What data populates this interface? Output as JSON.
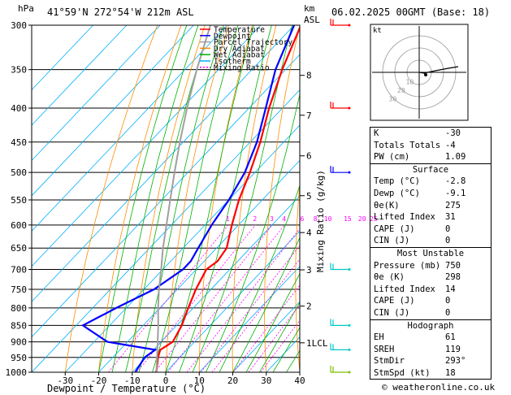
{
  "header": {
    "location": "41°59'N  272°54'W  212m  ASL",
    "datetime": "06.02.2025  00GMT  (Base: 18)",
    "y_unit_left": "hPa",
    "y_unit_right_1": "km",
    "y_unit_right_2": "ASL"
  },
  "chart_data": {
    "type": "line",
    "title": "41°59'N  272°54'W  212m  ASL",
    "xlabel": "Dewpoint / Temperature (°C)",
    "ylabel": "hPa",
    "right_axis_label": "Mixing Ratio (g/kg)",
    "xlim": [
      -40,
      40
    ],
    "ylim": [
      1000,
      300
    ],
    "x_ticks": [
      "-30",
      "-20",
      "-10",
      "0",
      "10",
      "20",
      "30",
      "40"
    ],
    "pressure_ticks": [
      "300",
      "350",
      "400",
      "450",
      "500",
      "550",
      "600",
      "650",
      "700",
      "750",
      "800",
      "850",
      "900",
      "950",
      "1000"
    ],
    "km_ticks": [
      {
        "label": "8",
        "p": 357
      },
      {
        "label": "7",
        "p": 410
      },
      {
        "label": "6",
        "p": 472
      },
      {
        "label": "5",
        "p": 542
      },
      {
        "label": "4",
        "p": 616
      },
      {
        "label": "3",
        "p": 701
      },
      {
        "label": "2",
        "p": 795
      },
      {
        "label": "1LCL",
        "p": 903
      }
    ],
    "mixing_ratio_labels": [
      "1",
      "2",
      "3",
      "4",
      "6",
      "8",
      "10",
      "15",
      "20",
      "25"
    ],
    "legend": [
      {
        "name": "Temperature",
        "color": "#ff0000"
      },
      {
        "name": "Dewpoint",
        "color": "#0000ff"
      },
      {
        "name": "Parcel Trajectory",
        "color": "#a0a0a0"
      },
      {
        "name": "Dry Adiabat",
        "color": "#ff8c00"
      },
      {
        "name": "Wet Adiabat",
        "color": "#00b000"
      },
      {
        "name": "Isotherm",
        "color": "#00b0ff"
      },
      {
        "name": "Mixing Ratio",
        "color": "#ff00ff"
      }
    ],
    "series": [
      {
        "name": "Temperature",
        "color": "#ff0000",
        "p": [
          1000,
          950,
          925,
          900,
          850,
          800,
          750,
          700,
          680,
          650,
          600,
          550,
          500,
          450,
          400,
          350,
          300
        ],
        "t": [
          -2.8,
          -6.5,
          -8.0,
          -6.5,
          -8.5,
          -11.5,
          -14.5,
          -17.0,
          -16.0,
          -17.0,
          -22.0,
          -27.0,
          -31.5,
          -37.0,
          -44.0,
          -51.0,
          -58.0
        ]
      },
      {
        "name": "Dewpoint",
        "color": "#0000ff",
        "p": [
          1000,
          950,
          925,
          900,
          850,
          800,
          750,
          700,
          680,
          650,
          600,
          550,
          500,
          450,
          400,
          350,
          300
        ],
        "t": [
          -9.1,
          -10.5,
          -9.5,
          -26.0,
          -38.0,
          -33.0,
          -27.0,
          -24.0,
          -24.0,
          -25.5,
          -28.0,
          -30.0,
          -33.0,
          -38.0,
          -45.0,
          -53.0,
          -60.0
        ]
      },
      {
        "name": "Parcel Trajectory",
        "color": "#a0a0a0",
        "p": [
          1000,
          900,
          850,
          800,
          750,
          700,
          650,
          600,
          550,
          500,
          450,
          400,
          350,
          300
        ],
        "t": [
          -2.8,
          -11.0,
          -15.5,
          -20.5,
          -25.5,
          -30.5,
          -36.0,
          -41.5,
          -47.5,
          -54.0,
          -61.0,
          -68.5,
          -76.5,
          -85.0
        ]
      }
    ],
    "wind_barb_colors": [
      "#ff0000",
      "#ff0000",
      "#0000ff",
      "#00c8c8",
      "#00c8c8",
      "#00c8c8",
      "#7fbf00"
    ]
  },
  "hodograph": {
    "label": "kt",
    "ring_labels": [
      "10",
      "20",
      "30"
    ]
  },
  "indices": {
    "rows": [
      {
        "k": "K",
        "v": "-30"
      },
      {
        "k": "Totals Totals",
        "v": "-4"
      },
      {
        "k": "PW (cm)",
        "v": "1.09"
      }
    ]
  },
  "surface": {
    "title": "Surface",
    "rows": [
      {
        "k": "Temp (°C)",
        "v": "-2.8"
      },
      {
        "k": "Dewp (°C)",
        "v": "-9.1"
      },
      {
        "k": "θe(K)",
        "v": "275"
      },
      {
        "k": "Lifted Index",
        "v": "31"
      },
      {
        "k": "CAPE (J)",
        "v": "0"
      },
      {
        "k": "CIN (J)",
        "v": "0"
      }
    ]
  },
  "most_unstable": {
    "title": "Most Unstable",
    "rows": [
      {
        "k": "Pressure (mb)",
        "v": "750"
      },
      {
        "k": "θe (K)",
        "v": "298"
      },
      {
        "k": "Lifted Index",
        "v": "14"
      },
      {
        "k": "CAPE (J)",
        "v": "0"
      },
      {
        "k": "CIN (J)",
        "v": "0"
      }
    ]
  },
  "hodograph_table": {
    "title": "Hodograph",
    "rows": [
      {
        "k": "EH",
        "v": "61"
      },
      {
        "k": "SREH",
        "v": "119"
      },
      {
        "k": "StmDir",
        "v": "293°"
      },
      {
        "k": "StmSpd (kt)",
        "v": "18"
      }
    ]
  },
  "footer": {
    "credit": "© weatheronline.co.uk"
  }
}
